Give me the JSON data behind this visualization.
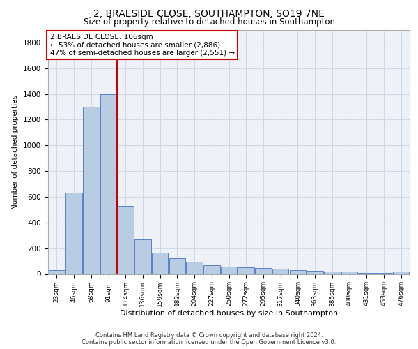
{
  "title_line1": "2, BRAESIDE CLOSE, SOUTHAMPTON, SO19 7NE",
  "title_line2": "Size of property relative to detached houses in Southampton",
  "xlabel": "Distribution of detached houses by size in Southampton",
  "ylabel": "Number of detached properties",
  "categories": [
    "23sqm",
    "46sqm",
    "68sqm",
    "91sqm",
    "114sqm",
    "136sqm",
    "159sqm",
    "182sqm",
    "204sqm",
    "227sqm",
    "250sqm",
    "272sqm",
    "295sqm",
    "317sqm",
    "340sqm",
    "363sqm",
    "385sqm",
    "408sqm",
    "431sqm",
    "453sqm",
    "476sqm"
  ],
  "values": [
    30,
    635,
    1300,
    1400,
    530,
    270,
    165,
    120,
    95,
    70,
    55,
    50,
    45,
    40,
    30,
    25,
    20,
    20,
    10,
    8,
    20
  ],
  "bar_color": "#b8cce4",
  "bar_edge_color": "#4472c4",
  "grid_color": "#d0d8e8",
  "background_color": "#ffffff",
  "plot_bg_color": "#eef2f8",
  "vline_x_index": 3.5,
  "vline_color": "#cc0000",
  "annotation_text": "2 BRAESIDE CLOSE: 106sqm\n← 53% of detached houses are smaller (2,886)\n47% of semi-detached houses are larger (2,551) →",
  "annotation_box_color": "#ffffff",
  "annotation_box_edge": "#cc0000",
  "ylim": [
    0,
    1900
  ],
  "yticks": [
    0,
    200,
    400,
    600,
    800,
    1000,
    1200,
    1400,
    1600,
    1800
  ],
  "footer_line1": "Contains HM Land Registry data © Crown copyright and database right 2024.",
  "footer_line2": "Contains public sector information licensed under the Open Government Licence v3.0."
}
